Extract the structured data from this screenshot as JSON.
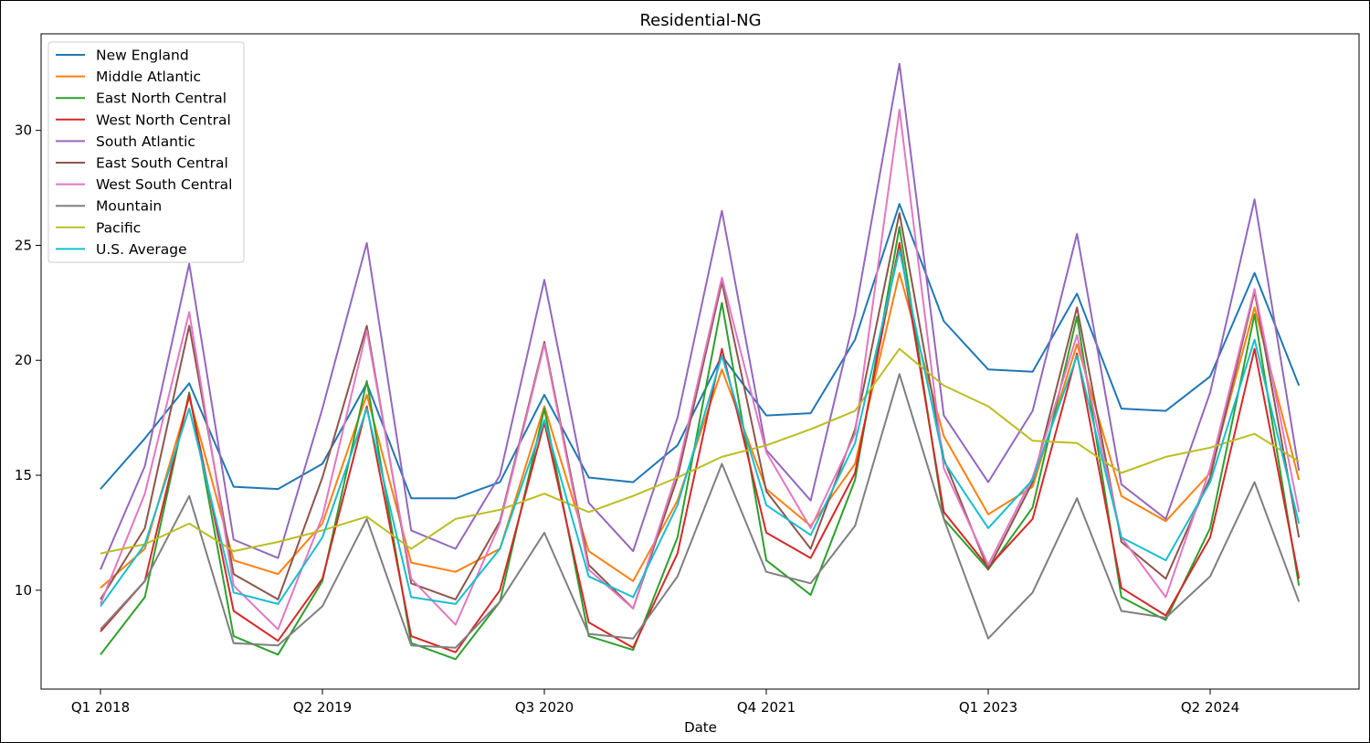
{
  "chart_data": {
    "type": "line",
    "title": "Residential-NG",
    "xlabel": "Date",
    "ylabel": "",
    "x": [
      "Q1 2018",
      "Q2 2018",
      "Q3 2018",
      "Q4 2018",
      "Q1 2019",
      "Q2 2019",
      "Q3 2019",
      "Q4 2019",
      "Q1 2020",
      "Q2 2020",
      "Q3 2020",
      "Q4 2020",
      "Q1 2021",
      "Q2 2021",
      "Q3 2021",
      "Q4 2021",
      "Q1 2022",
      "Q2 2022",
      "Q3 2022",
      "Q4 2022",
      "Q1 2023",
      "Q2 2023",
      "Q3 2023",
      "Q4 2023",
      "Q1 2024",
      "Q2 2024",
      "Q3 2024",
      "Q4 2024"
    ],
    "x_tick_labels": [
      "Q1 2018",
      "Q2 2019",
      "Q3 2020",
      "Q4 2021",
      "Q1 2023",
      "Q2 2024"
    ],
    "y_ticks": [
      10,
      15,
      20,
      25,
      30
    ],
    "ylim": [
      5.7,
      34.2
    ],
    "grid": false,
    "legend_position": "upper left",
    "series": [
      {
        "name": "New England",
        "color": "#1f77b4",
        "values": [
          14.4,
          16.6,
          19.0,
          14.5,
          14.4,
          15.5,
          19.0,
          14.0,
          14.0,
          14.7,
          18.5,
          14.9,
          14.7,
          16.3,
          20.2,
          17.6,
          17.7,
          20.9,
          26.8,
          21.7,
          19.6,
          19.5,
          22.9,
          17.9,
          17.8,
          19.3,
          23.8,
          18.9
        ]
      },
      {
        "name": "Middle Atlantic",
        "color": "#ff7f0e",
        "values": [
          10.1,
          11.8,
          18.4,
          11.3,
          10.7,
          12.9,
          18.5,
          11.2,
          10.8,
          11.8,
          18.0,
          11.7,
          10.4,
          13.9,
          19.6,
          14.4,
          12.8,
          15.5,
          23.8,
          16.7,
          13.3,
          14.5,
          20.7,
          14.1,
          13.0,
          15.1,
          22.3,
          14.8
        ]
      },
      {
        "name": "East North Central",
        "color": "#2ca02c",
        "values": [
          7.2,
          9.7,
          18.6,
          8.0,
          7.2,
          10.4,
          19.1,
          7.7,
          7.0,
          9.5,
          17.9,
          8.0,
          7.4,
          12.3,
          22.5,
          11.3,
          9.8,
          14.8,
          25.8,
          13.1,
          10.9,
          13.6,
          21.9,
          9.7,
          8.7,
          12.7,
          22.0,
          10.2
        ]
      },
      {
        "name": "West North Central",
        "color": "#d62728",
        "values": [
          8.2,
          10.4,
          18.5,
          9.1,
          7.8,
          10.5,
          18.0,
          8.0,
          7.3,
          10.0,
          17.3,
          8.6,
          7.5,
          11.6,
          20.5,
          12.5,
          11.4,
          15.1,
          25.1,
          13.4,
          11.0,
          13.1,
          20.3,
          10.1,
          8.9,
          12.3,
          20.5,
          10.5
        ]
      },
      {
        "name": "South Atlantic",
        "color": "#9467bd",
        "values": [
          10.9,
          15.4,
          24.2,
          12.2,
          11.4,
          17.9,
          25.1,
          12.6,
          11.8,
          15.0,
          23.5,
          13.8,
          11.7,
          17.5,
          26.5,
          16.1,
          13.9,
          22.0,
          32.9,
          17.6,
          14.7,
          17.8,
          25.5,
          14.6,
          13.1,
          18.6,
          27.0,
          15.2
        ]
      },
      {
        "name": "East South Central",
        "color": "#8c564b",
        "values": [
          9.6,
          12.7,
          21.5,
          10.7,
          9.6,
          14.9,
          21.5,
          10.3,
          9.6,
          13.0,
          20.8,
          11.1,
          9.2,
          14.9,
          23.4,
          14.3,
          11.8,
          17.0,
          26.4,
          15.7,
          10.9,
          14.7,
          22.3,
          12.1,
          10.5,
          14.9,
          23.0,
          12.3
        ]
      },
      {
        "name": "West South Central",
        "color": "#e377c2",
        "values": [
          9.4,
          14.2,
          22.1,
          10.2,
          8.3,
          13.2,
          21.3,
          10.5,
          8.5,
          12.9,
          20.7,
          10.9,
          9.2,
          15.2,
          23.6,
          16.0,
          12.7,
          16.8,
          30.9,
          15.3,
          11.1,
          14.9,
          21.1,
          12.3,
          9.7,
          15.3,
          23.1,
          13.4
        ]
      },
      {
        "name": "Mountain",
        "color": "#7f7f7f",
        "values": [
          8.3,
          10.4,
          14.1,
          7.7,
          7.6,
          9.3,
          13.1,
          7.6,
          7.5,
          9.5,
          12.5,
          8.1,
          7.9,
          10.6,
          15.5,
          10.8,
          10.3,
          12.8,
          19.4,
          13.1,
          7.9,
          9.9,
          14.0,
          9.1,
          8.8,
          10.6,
          14.7,
          9.5
        ]
      },
      {
        "name": "Pacific",
        "color": "#bcbd22",
        "values": [
          11.6,
          12.0,
          12.9,
          11.7,
          12.1,
          12.6,
          13.2,
          11.8,
          13.1,
          13.5,
          14.2,
          13.4,
          14.1,
          14.9,
          15.8,
          16.3,
          17.0,
          17.8,
          20.5,
          18.9,
          18.0,
          16.5,
          16.4,
          15.1,
          15.8,
          16.2,
          16.8,
          15.6
        ]
      },
      {
        "name": "U.S. Average",
        "color": "#17becf",
        "values": [
          9.3,
          12.0,
          17.9,
          9.9,
          9.4,
          12.3,
          17.9,
          9.7,
          9.4,
          11.8,
          17.4,
          10.6,
          9.7,
          13.7,
          20.2,
          13.7,
          12.4,
          16.4,
          24.8,
          15.6,
          12.7,
          14.8,
          20.2,
          12.3,
          11.3,
          14.7,
          20.9,
          12.9
        ]
      }
    ]
  }
}
